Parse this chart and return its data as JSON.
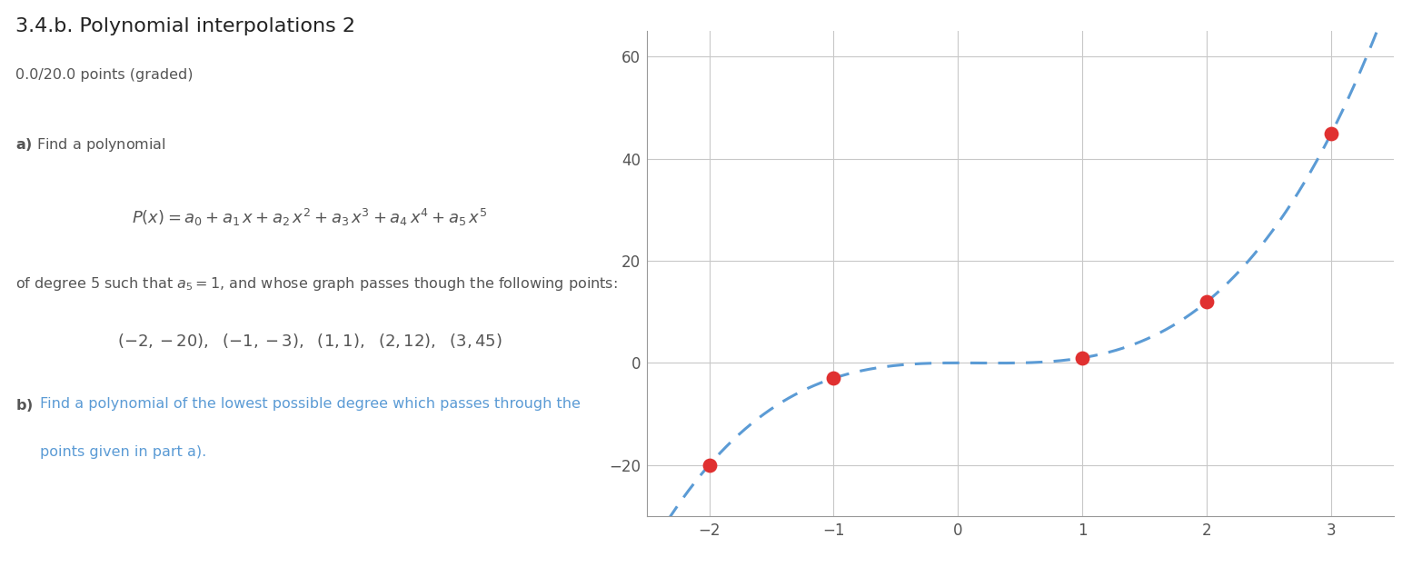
{
  "title": "3.4.b. Polynomial interpolations 2",
  "subtitle": "0.0/20.0 points (graded)",
  "points_x": [
    -2,
    -1,
    1,
    2,
    3
  ],
  "points_y": [
    -20,
    -3,
    1,
    12,
    45
  ],
  "xlim": [
    -2.5,
    3.5
  ],
  "ylim": [
    -30,
    65
  ],
  "xticks": [
    -2,
    -1,
    0,
    1,
    2,
    3
  ],
  "yticks": [
    -20,
    0,
    20,
    40,
    60
  ],
  "point_color": "#e03030",
  "line_color": "#5b9bd5",
  "point_size": 130,
  "background_color": "#ffffff",
  "text_color": "#555555",
  "title_color": "#222222",
  "subtitle_color": "#555555",
  "part_label_color": "#222222",
  "part_b_link_color": "#5b9bd5"
}
